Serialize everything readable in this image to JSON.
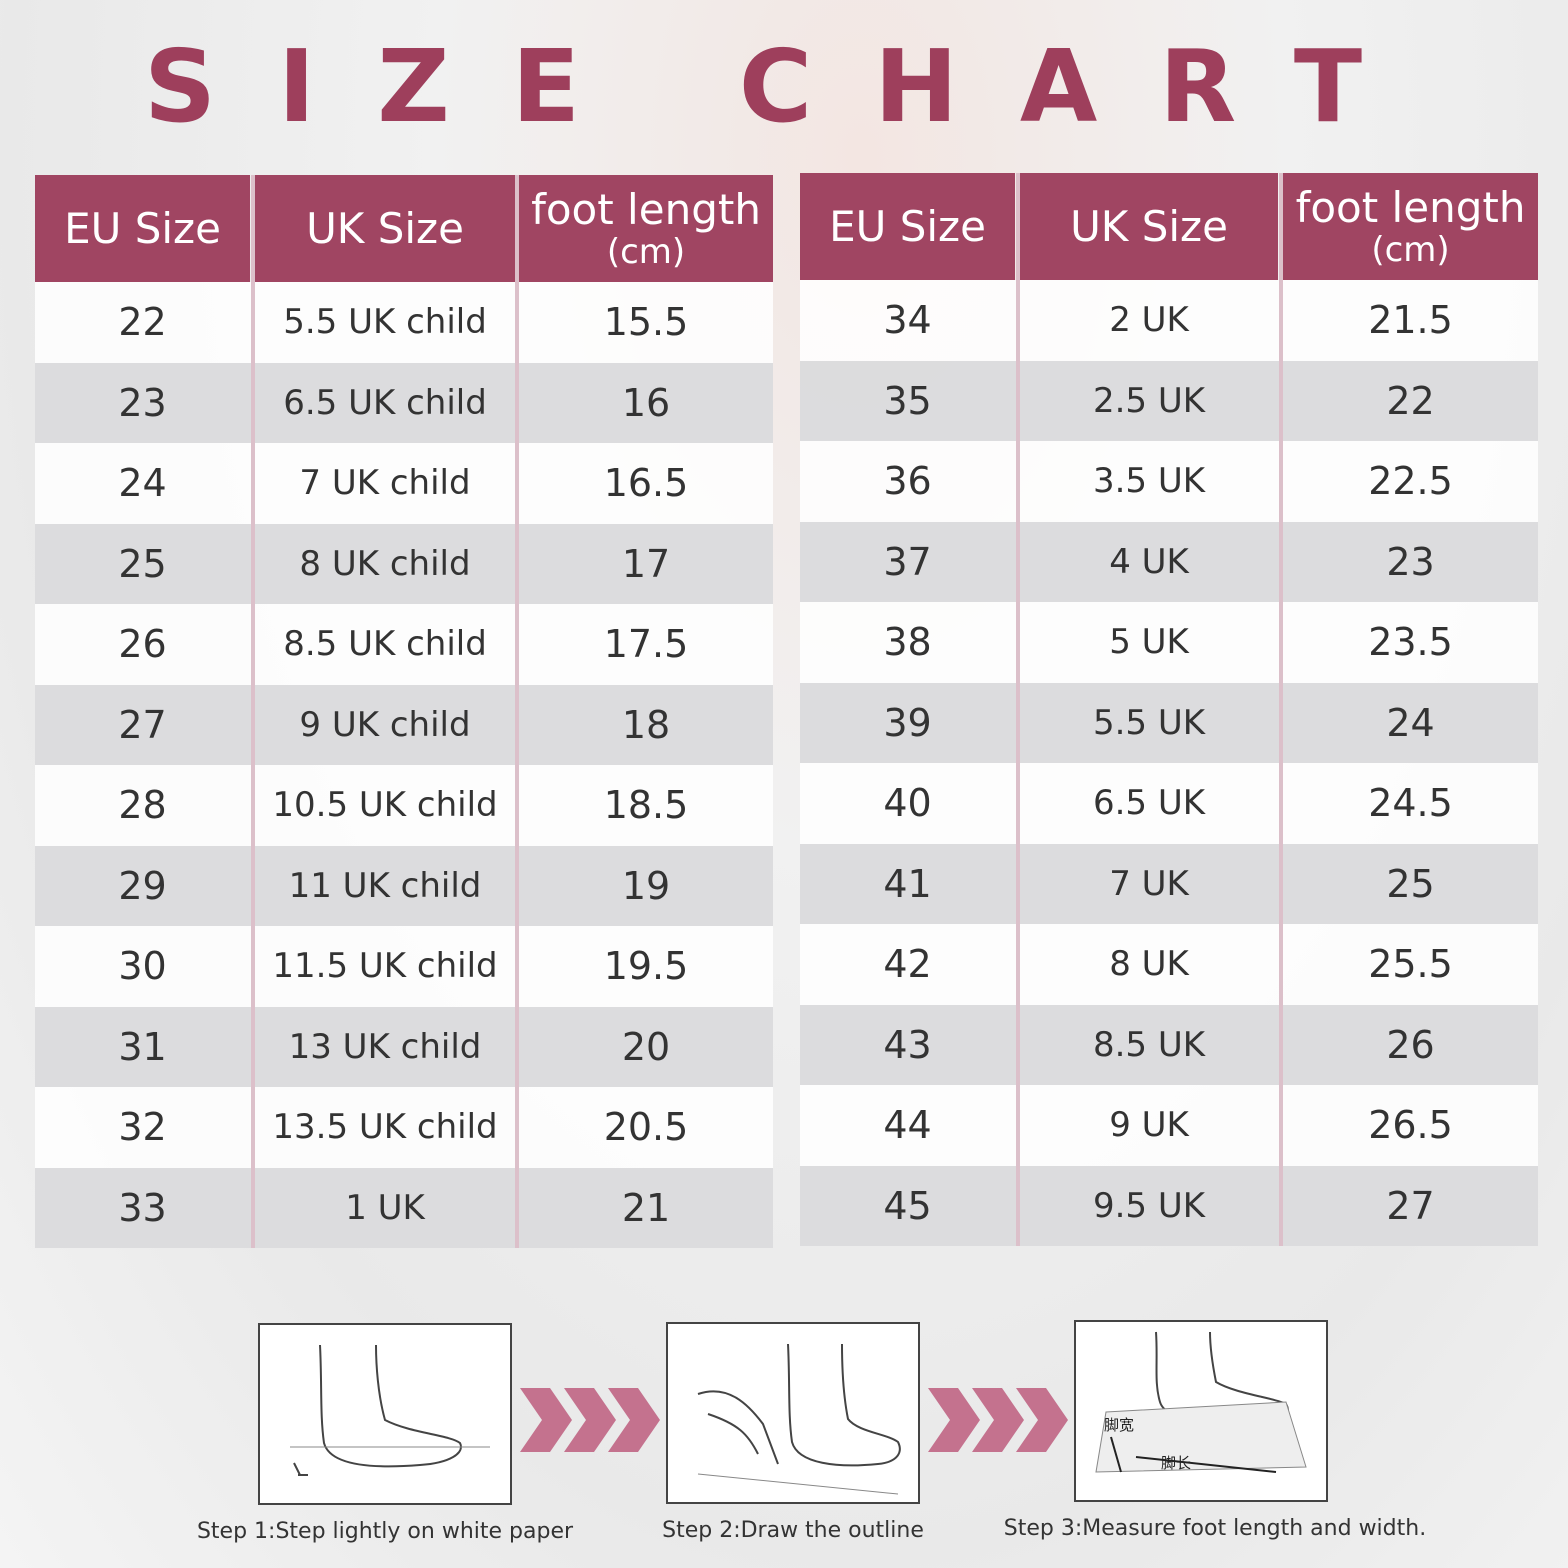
{
  "title": "SIZE CHART",
  "tables": [
    {
      "headers": [
        "EU Size",
        "UK Size",
        "foot length"
      ],
      "unit": "(cm)",
      "rows": [
        [
          22,
          "5.5 UK child",
          15.5
        ],
        [
          23,
          "6.5 UK child",
          16
        ],
        [
          24,
          "7 UK child",
          16.5
        ],
        [
          25,
          "8 UK child",
          17
        ],
        [
          26,
          "8.5 UK child",
          17.5
        ],
        [
          27,
          "9 UK child",
          18
        ],
        [
          28,
          "10.5 UK child",
          18.5
        ],
        [
          29,
          "11 UK child",
          19
        ],
        [
          30,
          "11.5 UK child",
          19.5
        ],
        [
          31,
          "13 UK child",
          20
        ],
        [
          32,
          "13.5 UK child",
          20.5
        ],
        [
          33,
          "1 UK",
          21
        ]
      ]
    },
    {
      "headers": [
        "EU Size",
        "UK Size",
        "foot length"
      ],
      "unit": "(cm)",
      "rows": [
        [
          34,
          "2 UK",
          21.5
        ],
        [
          35,
          "2.5 UK",
          22
        ],
        [
          36,
          "3.5 UK",
          22.5
        ],
        [
          37,
          "4 UK",
          23
        ],
        [
          38,
          "5 UK",
          23.5
        ],
        [
          39,
          "5.5 UK",
          24
        ],
        [
          40,
          "6.5 UK",
          24.5
        ],
        [
          41,
          "7 UK",
          25
        ],
        [
          42,
          "8 UK",
          25.5
        ],
        [
          43,
          "8.5 UK",
          26
        ],
        [
          44,
          "9 UK",
          26.5
        ],
        [
          45,
          "9.5 UK",
          27
        ]
      ]
    }
  ],
  "steps": [
    {
      "caption": "Step 1:Step lightly on white paper"
    },
    {
      "caption": "Step 2:Draw the outline"
    },
    {
      "caption": "Step 3:Measure foot length and width.",
      "labels": [
        "脚宽",
        "脚长"
      ]
    }
  ]
}
